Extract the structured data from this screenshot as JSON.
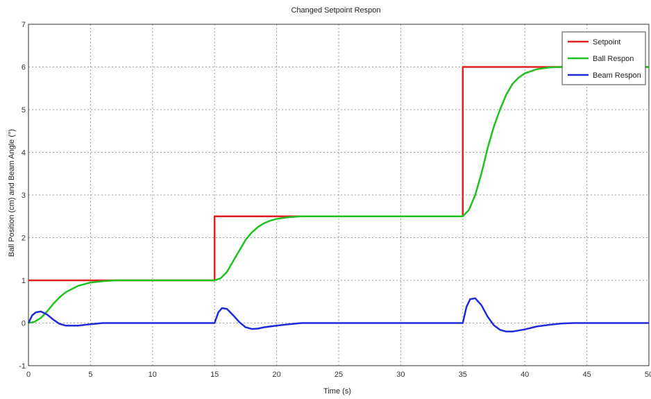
{
  "chart_data": {
    "type": "line",
    "title": "Changed Setpoint Respon",
    "xlabel": "Time (s)",
    "ylabel": "Ball Position (cm) and Beam Angle (°)",
    "xlim": [
      0,
      50
    ],
    "ylim": [
      -1,
      7
    ],
    "xticks": [
      "0",
      "5",
      "10",
      "15",
      "20",
      "25",
      "30",
      "35",
      "40",
      "45",
      "50"
    ],
    "xtick_values": [
      0,
      5,
      10,
      15,
      20,
      25,
      30,
      35,
      40,
      45,
      50
    ],
    "yticks": [
      "-1",
      "0",
      "1",
      "2",
      "3",
      "4",
      "5",
      "6",
      "7"
    ],
    "ytick_values": [
      -1,
      0,
      1,
      2,
      3,
      4,
      5,
      6,
      7
    ],
    "grid": true,
    "legend_position": "top-right",
    "series": [
      {
        "name": "Setpoint",
        "color": "#e02020",
        "x": [
          0,
          15,
          15,
          35,
          35,
          50
        ],
        "y": [
          1,
          1,
          2.5,
          2.5,
          6,
          6
        ]
      },
      {
        "name": "Ball Respon",
        "color": "#20c020",
        "x": [
          0,
          0.5,
          1,
          1.5,
          2,
          2.5,
          3,
          4,
          5,
          6,
          7,
          8,
          10,
          15,
          15.5,
          16,
          16.5,
          17,
          17.5,
          18,
          18.5,
          19,
          19.5,
          20,
          21,
          22,
          23,
          25,
          30,
          35,
          35.5,
          36,
          36.5,
          37,
          37.5,
          38,
          38.5,
          39,
          39.5,
          40,
          41,
          42,
          43,
          45,
          50
        ],
        "y": [
          0,
          0.03,
          0.12,
          0.27,
          0.45,
          0.6,
          0.72,
          0.87,
          0.95,
          0.98,
          1.0,
          1.0,
          1.0,
          1.0,
          1.05,
          1.2,
          1.45,
          1.7,
          1.95,
          2.12,
          2.25,
          2.34,
          2.4,
          2.44,
          2.48,
          2.5,
          2.5,
          2.5,
          2.5,
          2.5,
          2.65,
          3.0,
          3.5,
          4.1,
          4.6,
          5.0,
          5.35,
          5.6,
          5.75,
          5.85,
          5.95,
          5.99,
          6.0,
          6.0,
          6.0
        ]
      },
      {
        "name": "Beam Respon",
        "color": "#1f2ad8",
        "x": [
          0,
          0.3,
          0.6,
          1,
          1.5,
          2,
          2.5,
          3,
          4,
          5,
          6,
          8,
          10,
          15,
          15.3,
          15.6,
          16,
          16.5,
          17,
          17.5,
          18,
          18.5,
          19,
          20,
          21,
          22,
          25,
          35,
          35.3,
          35.6,
          36,
          36.5,
          37,
          37.5,
          38,
          38.5,
          39,
          40,
          41,
          42,
          43,
          44,
          45,
          50
        ],
        "y": [
          0,
          0.18,
          0.25,
          0.27,
          0.2,
          0.08,
          -0.02,
          -0.06,
          -0.06,
          -0.03,
          0,
          0,
          0,
          0,
          0.25,
          0.35,
          0.33,
          0.18,
          0.02,
          -0.1,
          -0.14,
          -0.13,
          -0.1,
          -0.06,
          -0.03,
          0,
          0,
          0,
          0.38,
          0.56,
          0.58,
          0.42,
          0.15,
          -0.05,
          -0.16,
          -0.2,
          -0.2,
          -0.15,
          -0.08,
          -0.04,
          -0.01,
          0,
          0,
          0
        ]
      }
    ]
  }
}
